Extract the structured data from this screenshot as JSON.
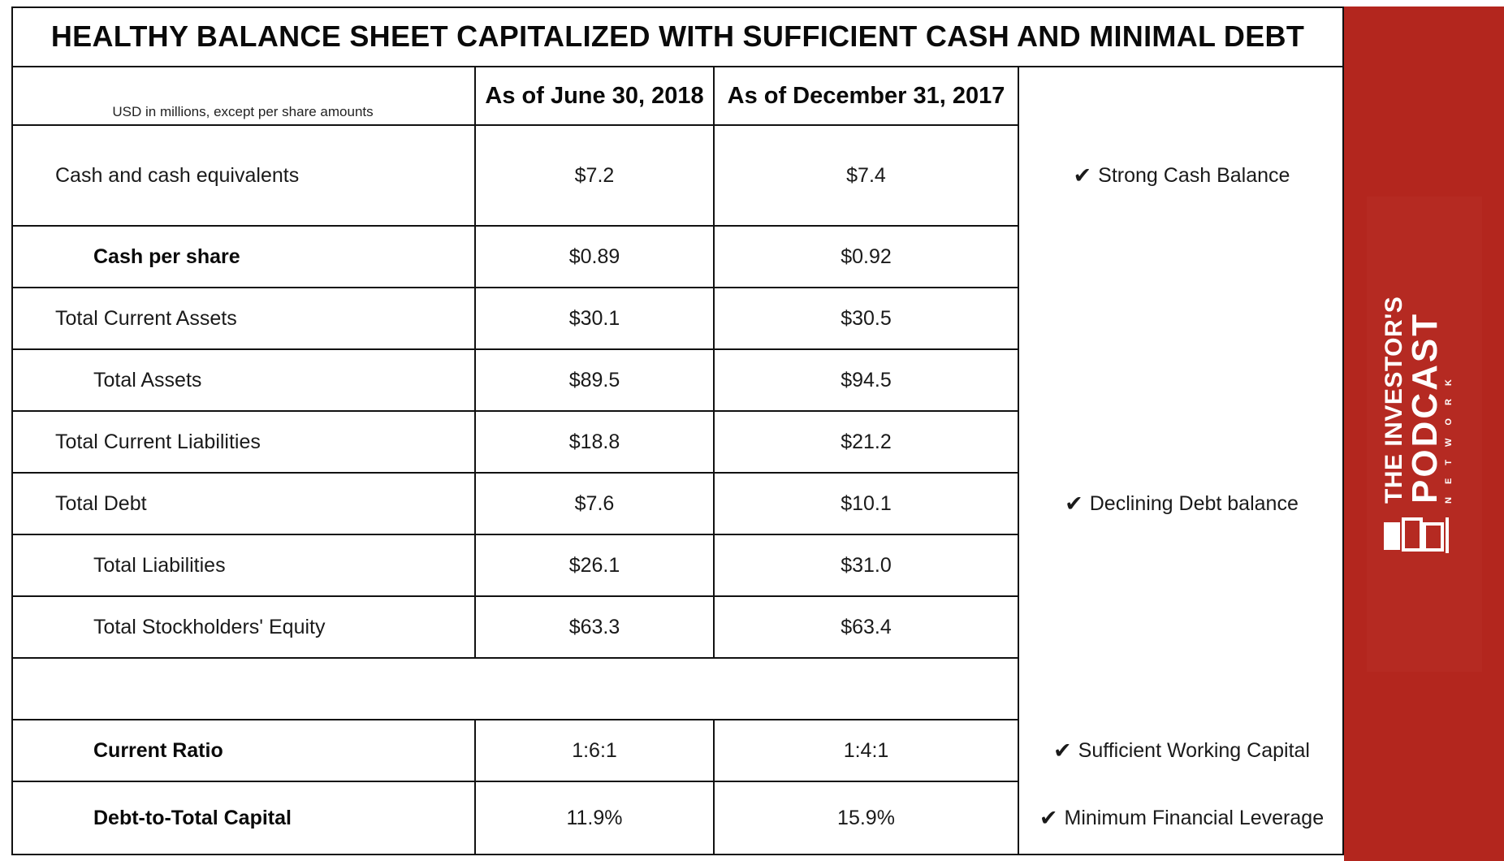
{
  "title": "HEALTHY BALANCE SHEET CAPITALIZED WITH SUFFICIENT CASH AND MINIMAL DEBT",
  "units_note": "USD in millions, except per share amounts",
  "columns": [
    "As of June 30, 2018",
    "As of December 31, 2017"
  ],
  "rows": [
    {
      "label": "Cash and cash equivalents",
      "v1": "$7.2",
      "v2": "$7.4"
    },
    {
      "label": "Cash per share",
      "v1": "$0.89",
      "v2": "$0.92"
    },
    {
      "label": "Total Current Assets",
      "v1": "$30.1",
      "v2": "$30.5"
    },
    {
      "label": "Total Assets",
      "v1": "$89.5",
      "v2": "$94.5"
    },
    {
      "label": "Total Current Liabilities",
      "v1": "$18.8",
      "v2": "$21.2"
    },
    {
      "label": "Total Debt",
      "v1": "$7.6",
      "v2": "$10.1"
    },
    {
      "label": "Total Liabilities",
      "v1": "$26.1",
      "v2": "$31.0"
    },
    {
      "label": "Total Stockholders' Equity",
      "v1": "$63.3",
      "v2": "$63.4"
    },
    {
      "label": "Current Ratio",
      "v1": "1:6:1",
      "v2": "1:4:1"
    },
    {
      "label": "Debt-to-Total Capital",
      "v1": "11.9%",
      "v2": "15.9%"
    }
  ],
  "notes": {
    "check_mark": "✔",
    "cash": "Strong Cash Balance",
    "debt": "Declining Debt balance",
    "working_capital": "Sufficient Working Capital",
    "leverage": "Minimum Financial Leverage"
  },
  "brand": {
    "line1": "THE INVESTOR'S",
    "line2": "PODCAST",
    "line3": "NETWORK",
    "panel_color": "#b3261e"
  }
}
